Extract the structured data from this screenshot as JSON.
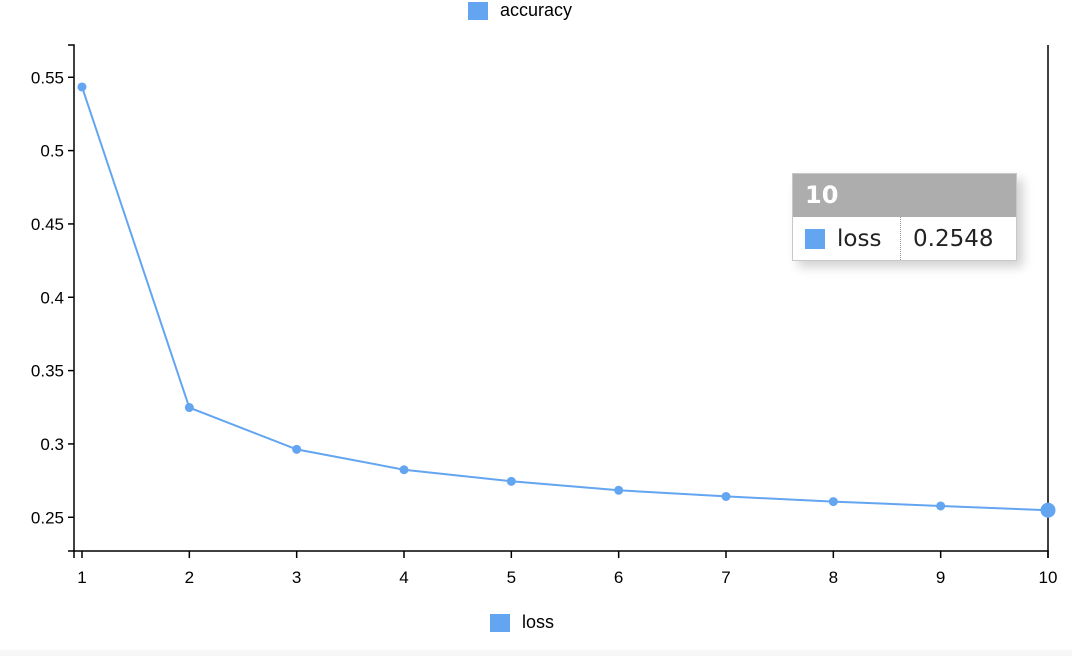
{
  "colors": {
    "series": "#63a5f0",
    "axis": "#000000",
    "tooltip_header": "#adadad"
  },
  "legend": {
    "top_label": "accuracy",
    "bottom_label": "loss"
  },
  "tooltip": {
    "title": "10",
    "series_name": "loss",
    "value": "0.2548"
  },
  "chart_data": {
    "type": "line",
    "x": [
      1,
      2,
      3,
      4,
      5,
      6,
      7,
      8,
      9,
      10
    ],
    "series": [
      {
        "name": "loss",
        "values": [
          0.5434,
          0.3248,
          0.2963,
          0.2824,
          0.2745,
          0.2684,
          0.2642,
          0.2607,
          0.2577,
          0.2548
        ]
      }
    ],
    "x_ticks": [
      "1",
      "2",
      "3",
      "4",
      "5",
      "6",
      "7",
      "8",
      "9",
      "10"
    ],
    "y_ticks": [
      "0.25",
      "0.3",
      "0.35",
      "0.4",
      "0.45",
      "0.5",
      "0.55"
    ],
    "xlim": [
      1,
      10
    ],
    "ylim": [
      0.227,
      0.572
    ],
    "highlight_x": 10,
    "grid": false,
    "legend_placement": "top and bottom"
  }
}
